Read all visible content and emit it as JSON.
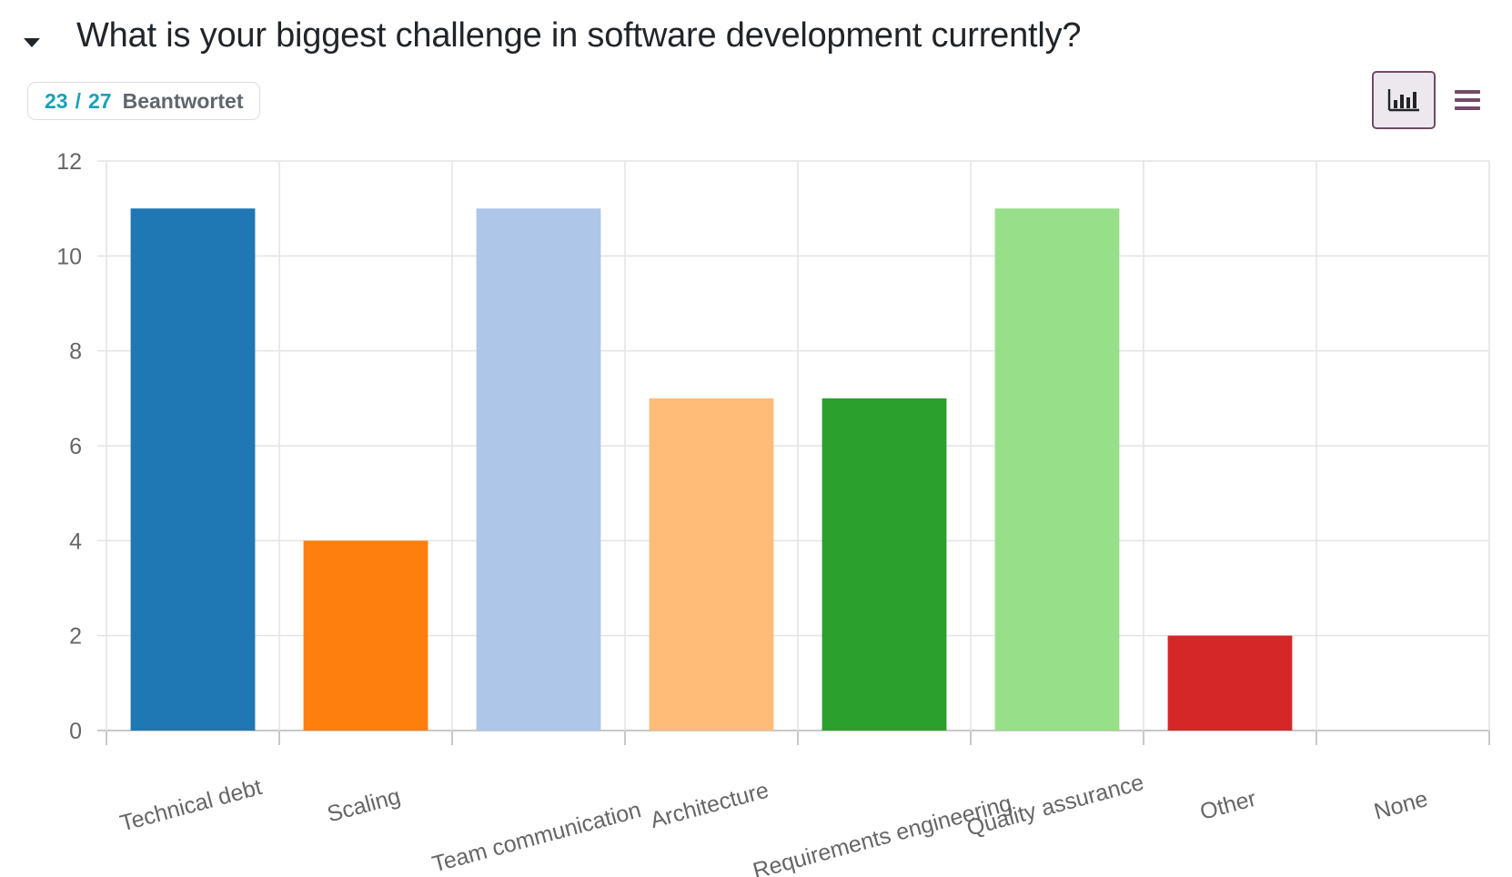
{
  "question": {
    "title": "What is your biggest challenge in software development currently?"
  },
  "answered": {
    "count": "23",
    "separator": "/",
    "total": "27",
    "label": "Beantwortet"
  },
  "view_toggle": {
    "active": "chart",
    "icons": [
      "bar-chart-icon",
      "list-icon"
    ],
    "accent_color": "#714b67"
  },
  "chart_data": {
    "type": "bar",
    "categories": [
      "Technical debt",
      "Scaling",
      "Team communication",
      "Architecture",
      "Requirements engineering",
      "Quality assurance",
      "Other",
      "None"
    ],
    "values": [
      11,
      4,
      11,
      7,
      7,
      11,
      2,
      0
    ],
    "colors": [
      "#1f77b4",
      "#ff7f0e",
      "#aec7e8",
      "#ffbb78",
      "#2ca02c",
      "#98df8a",
      "#d62728",
      "#ff9896"
    ],
    "ylim": [
      0,
      12
    ],
    "yticks": [
      0,
      2,
      4,
      6,
      8,
      10,
      12
    ],
    "grid": true,
    "legend": "none"
  }
}
